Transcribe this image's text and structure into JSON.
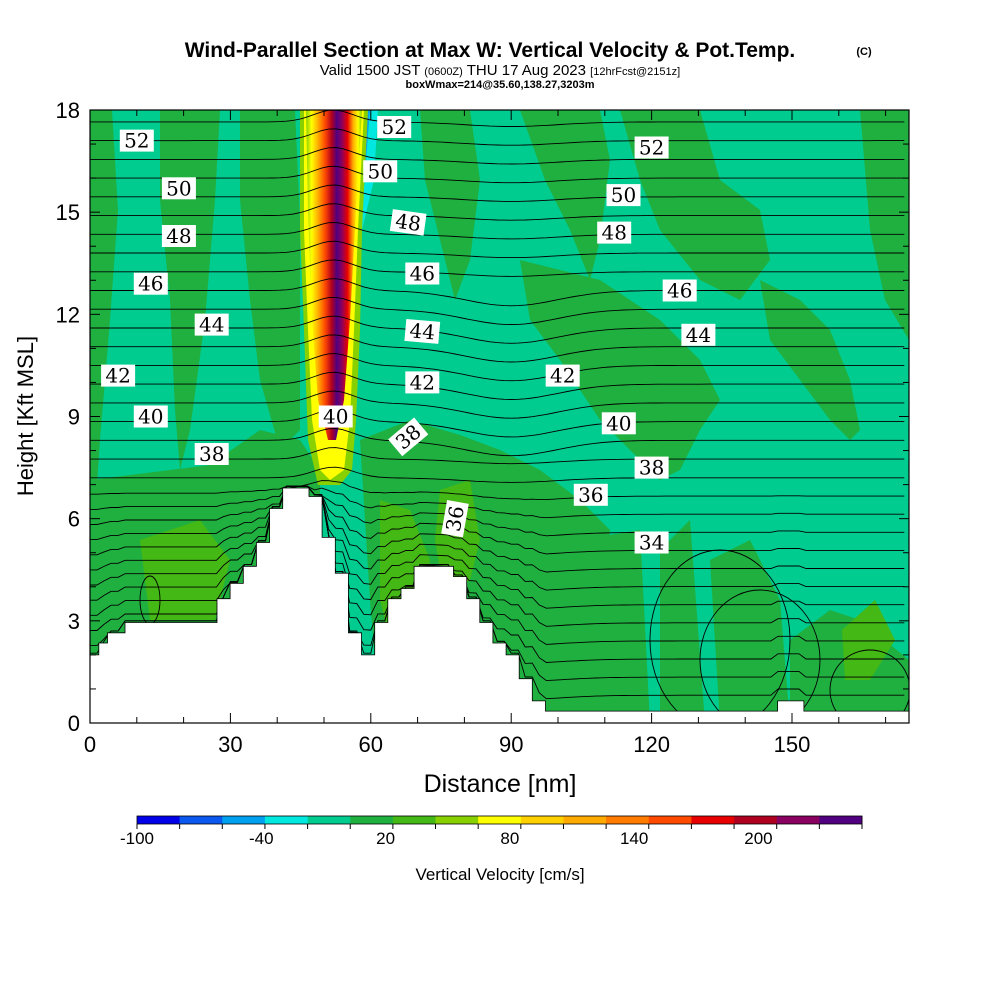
{
  "chart_data": {
    "type": "contour-cross-section",
    "title": "Wind-Parallel Section at Max W: Vertical Velocity & Pot.Temp.",
    "copyright_mark": "(C)",
    "subtitle_valid": "Valid 1500 JST",
    "subtitle_utc": "(0600Z)",
    "subtitle_date": "THU 17 Aug 2023",
    "subtitle_fcst": "[12hrFcst@2151z]",
    "box_info": "boxWmax=214@35.60,138.27,3203m",
    "xlabel": "Distance [nm]",
    "ylabel": "Height [Kft MSL]",
    "xlim": [
      0,
      175
    ],
    "ylim": [
      0,
      18
    ],
    "x_ticks": [
      0,
      30,
      60,
      90,
      120,
      150
    ],
    "y_ticks": [
      0,
      3,
      6,
      9,
      12,
      15,
      18
    ],
    "colorbar": {
      "label": "Vertical Velocity [cm/s]",
      "tick_labels": [
        "-100",
        "-40",
        "20",
        "80",
        "140",
        "200"
      ],
      "tick_values": [
        -100,
        -40,
        20,
        80,
        140,
        200
      ],
      "min": -100,
      "max": 250,
      "colors": [
        "#0000e8",
        "#0a58f0",
        "#00a0f0",
        "#00e8e0",
        "#00cc90",
        "#20b040",
        "#44b814",
        "#88d000",
        "#ffff00",
        "#ffd000",
        "#ffaa00",
        "#ff7c00",
        "#ff4a00",
        "#e80000",
        "#b00020",
        "#8a0060",
        "#500080"
      ]
    },
    "theta_labels": [
      {
        "text": "52",
        "x": 10,
        "y": 17.1,
        "rot": 0
      },
      {
        "text": "50",
        "x": 19,
        "y": 15.7,
        "rot": 0
      },
      {
        "text": "48",
        "x": 19,
        "y": 14.3,
        "rot": 0
      },
      {
        "text": "46",
        "x": 13,
        "y": 12.9,
        "rot": 0
      },
      {
        "text": "44",
        "x": 26,
        "y": 11.7,
        "rot": 0
      },
      {
        "text": "42",
        "x": 6,
        "y": 10.2,
        "rot": 0
      },
      {
        "text": "40",
        "x": 13,
        "y": 9.0,
        "rot": 0
      },
      {
        "text": "38",
        "x": 26,
        "y": 7.9,
        "rot": 0
      },
      {
        "text": "52",
        "x": 65,
        "y": 17.5,
        "rot": 0
      },
      {
        "text": "50",
        "x": 62,
        "y": 16.2,
        "rot": 0
      },
      {
        "text": "48",
        "x": 68,
        "y": 14.7,
        "rot": 8
      },
      {
        "text": "46",
        "x": 71,
        "y": 13.2,
        "rot": 0
      },
      {
        "text": "44",
        "x": 71,
        "y": 11.5,
        "rot": 5
      },
      {
        "text": "42",
        "x": 71,
        "y": 10.0,
        "rot": 0
      },
      {
        "text": "40",
        "x": 52.5,
        "y": 9.0,
        "rot": 0
      },
      {
        "text": "38",
        "x": 68,
        "y": 8.4,
        "rot": -40
      },
      {
        "text": "36",
        "x": 78,
        "y": 6.0,
        "rot": -80
      },
      {
        "text": "42",
        "x": 101,
        "y": 10.2,
        "rot": 0
      },
      {
        "text": "52",
        "x": 120,
        "y": 16.9,
        "rot": 0
      },
      {
        "text": "50",
        "x": 114,
        "y": 15.5,
        "rot": 0
      },
      {
        "text": "48",
        "x": 112,
        "y": 14.4,
        "rot": 0
      },
      {
        "text": "46",
        "x": 126,
        "y": 12.7,
        "rot": 0
      },
      {
        "text": "44",
        "x": 130,
        "y": 11.4,
        "rot": 0
      },
      {
        "text": "40",
        "x": 113,
        "y": 8.8,
        "rot": 0
      },
      {
        "text": "38",
        "x": 120,
        "y": 7.5,
        "rot": 0
      },
      {
        "text": "36",
        "x": 107,
        "y": 6.7,
        "rot": 0
      },
      {
        "text": "34",
        "x": 120,
        "y": 5.3,
        "rot": 0
      }
    ],
    "terrain_heights_kft": [
      2,
      2,
      2.35,
      2.35,
      2.65,
      2.65,
      2.65,
      2.65,
      2.95,
      2.95,
      2.95,
      2.95,
      2.95,
      2.95,
      2.95,
      2.95,
      2.95,
      2.95,
      2.95,
      2.95,
      2.95,
      2.95,
      2.95,
      2.95,
      2.95,
      2.95,
      2.95,
      2.95,
      2.95,
      3.65,
      3.65,
      3.65,
      4.1,
      4.1,
      4.1,
      4.6,
      4.6,
      4.6,
      5.3,
      5.3,
      5.3,
      6.3,
      6.3,
      6.3,
      6.9,
      6.9,
      6.9,
      6.9,
      6.9,
      6.9,
      6.65,
      6.65,
      6.65,
      5.45,
      5.45,
      5.45,
      4.4,
      4.4,
      4.4,
      2.65,
      2.65,
      2.65,
      2,
      2,
      2,
      2.95,
      2.95,
      2.95,
      3.65,
      3.65,
      3.65,
      3.95,
      3.95,
      3.95,
      4.6,
      4.6,
      4.6,
      4.6,
      4.6,
      4.6,
      4.6,
      4.6,
      4.6,
      4.3,
      4.3,
      4.3,
      3.65,
      3.65,
      3.65,
      2.95,
      2.95,
      2.95,
      2.35,
      2.35,
      2.35,
      2,
      2,
      2,
      1.3,
      1.3,
      1.3,
      0.65,
      0.65,
      0.65,
      0.35,
      0.35,
      0.35,
      0.35,
      0.35,
      0.35,
      0.35,
      0.35,
      0.35,
      0.35,
      0.35,
      0.35,
      0.35,
      0.35,
      0.35,
      0.35,
      0.35,
      0.35,
      0.35,
      0.35,
      0.35,
      0.35,
      0.35,
      0.35,
      0.35,
      0.35,
      0.35,
      0.35,
      0.35,
      0.35,
      0.35,
      0.35,
      0.35,
      0.35,
      0.35,
      0.35,
      0.35,
      0.35,
      0.35,
      0.35,
      0.35,
      0.35,
      0.35,
      0.35,
      0.35,
      0.35,
      0.35,
      0.35,
      0.35,
      0.35,
      0.35,
      0.35,
      0.35,
      0.65,
      0.65,
      0.65,
      0.65,
      0.65,
      0.65,
      0.35,
      0.35,
      0.35,
      0.35,
      0.35,
      0.35,
      0.35,
      0.35,
      0.35,
      0.35,
      0.35,
      0.35,
      0.35,
      0.35,
      0.35,
      0.35,
      0.35,
      0.35,
      0.35,
      0.35,
      0.35,
      0.35,
      0.35,
      0.35
    ]
  }
}
